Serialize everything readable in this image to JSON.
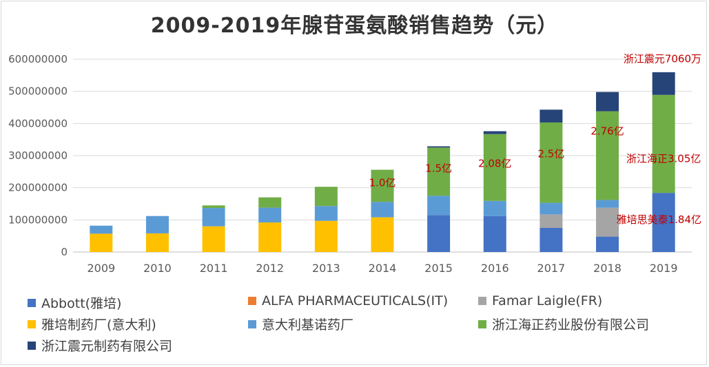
{
  "chart_data": {
    "type": "bar",
    "stacked": true,
    "title": "2009-2019年腺苷蛋氨酸销售趋势（元）",
    "xlabel": "",
    "ylabel": "",
    "ylim": [
      0,
      600000000
    ],
    "yticks": [
      "0",
      "100000000",
      "200000000",
      "300000000",
      "400000000",
      "500000000",
      "600000000"
    ],
    "categories": [
      "2009",
      "2010",
      "2011",
      "2012",
      "2013",
      "2014",
      "2015",
      "2016",
      "2017",
      "2018",
      "2019"
    ],
    "grid": true,
    "legend_position": "bottom",
    "series": [
      {
        "name": "Abbott(雅培)",
        "color": "#4472c4",
        "values": [
          0,
          0,
          0,
          0,
          0,
          0,
          115000000,
          112000000,
          75000000,
          48000000,
          184000000
        ]
      },
      {
        "name": "ALFA PHARMACEUTICALS(IT)",
        "color": "#ed7d31",
        "values": [
          0,
          0,
          0,
          0,
          0,
          0,
          0,
          0,
          0,
          0,
          0
        ]
      },
      {
        "name": "Famar Laigle(FR)",
        "color": "#a5a5a5",
        "values": [
          0,
          0,
          0,
          0,
          0,
          0,
          0,
          0,
          42000000,
          90000000,
          0
        ]
      },
      {
        "name": "雅培制药厂(意大利)",
        "color": "#ffc000",
        "values": [
          57000000,
          58000000,
          80000000,
          92000000,
          97000000,
          108000000,
          0,
          0,
          0,
          0,
          0
        ]
      },
      {
        "name": "意大利基诺药厂",
        "color": "#5b9bd5",
        "values": [
          25000000,
          54000000,
          57000000,
          46000000,
          46000000,
          48000000,
          60000000,
          47000000,
          36000000,
          24000000,
          0
        ]
      },
      {
        "name": "浙江海正药业股份有限公司",
        "color": "#70ad47",
        "values": [
          0,
          0,
          8000000,
          32000000,
          60000000,
          100000000,
          150000000,
          208000000,
          250000000,
          276000000,
          305000000
        ]
      },
      {
        "name": "浙江震元制药有限公司",
        "color": "#264478",
        "values": [
          0,
          0,
          0,
          0,
          0,
          0,
          4000000,
          9000000,
          40000000,
          60000000,
          70600000
        ]
      }
    ],
    "annotations": [
      {
        "text": "1.0亿",
        "category": "2014",
        "y": 205000000
      },
      {
        "text": "1.5亿",
        "category": "2015",
        "y": 250000000
      },
      {
        "text": "2.08亿",
        "category": "2016",
        "y": 265000000
      },
      {
        "text": "2.5亿",
        "category": "2017",
        "y": 295000000
      },
      {
        "text": "2.76亿",
        "category": "2018",
        "y": 365000000
      },
      {
        "text": "浙江海正3.05亿",
        "category": "2019",
        "y": 280000000
      },
      {
        "text": "雅培思美泰1.84亿",
        "category": "2019",
        "y": 90000000
      },
      {
        "text": "浙江震元7060万",
        "category": "2019",
        "y": 590000000
      }
    ],
    "annotation_color": "#c00000"
  }
}
